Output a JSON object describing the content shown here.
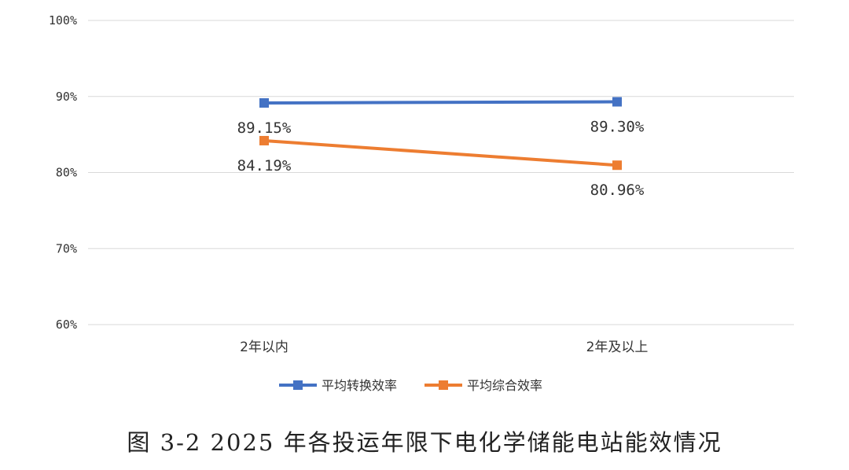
{
  "chart_data": {
    "type": "line",
    "categories": [
      "2年以内",
      "2年及以上"
    ],
    "series": [
      {
        "name": "平均转换效率",
        "values": [
          89.15,
          89.3
        ],
        "labels": [
          "89.15%",
          "89.30%"
        ],
        "color": "#4472C4"
      },
      {
        "name": "平均综合效率",
        "values": [
          84.19,
          80.96
        ],
        "labels": [
          "84.19%",
          "80.96%"
        ],
        "color": "#ED7D31"
      }
    ],
    "y_ticks": [
      60,
      70,
      80,
      90,
      100
    ],
    "y_tick_labels": [
      "60%",
      "70%",
      "80%",
      "90%",
      "100%"
    ],
    "ylim": [
      60,
      100
    ],
    "grid": true,
    "legend_position": "bottom"
  },
  "caption": "图 3-2 2025 年各投运年限下电化学储能电站能效情况"
}
